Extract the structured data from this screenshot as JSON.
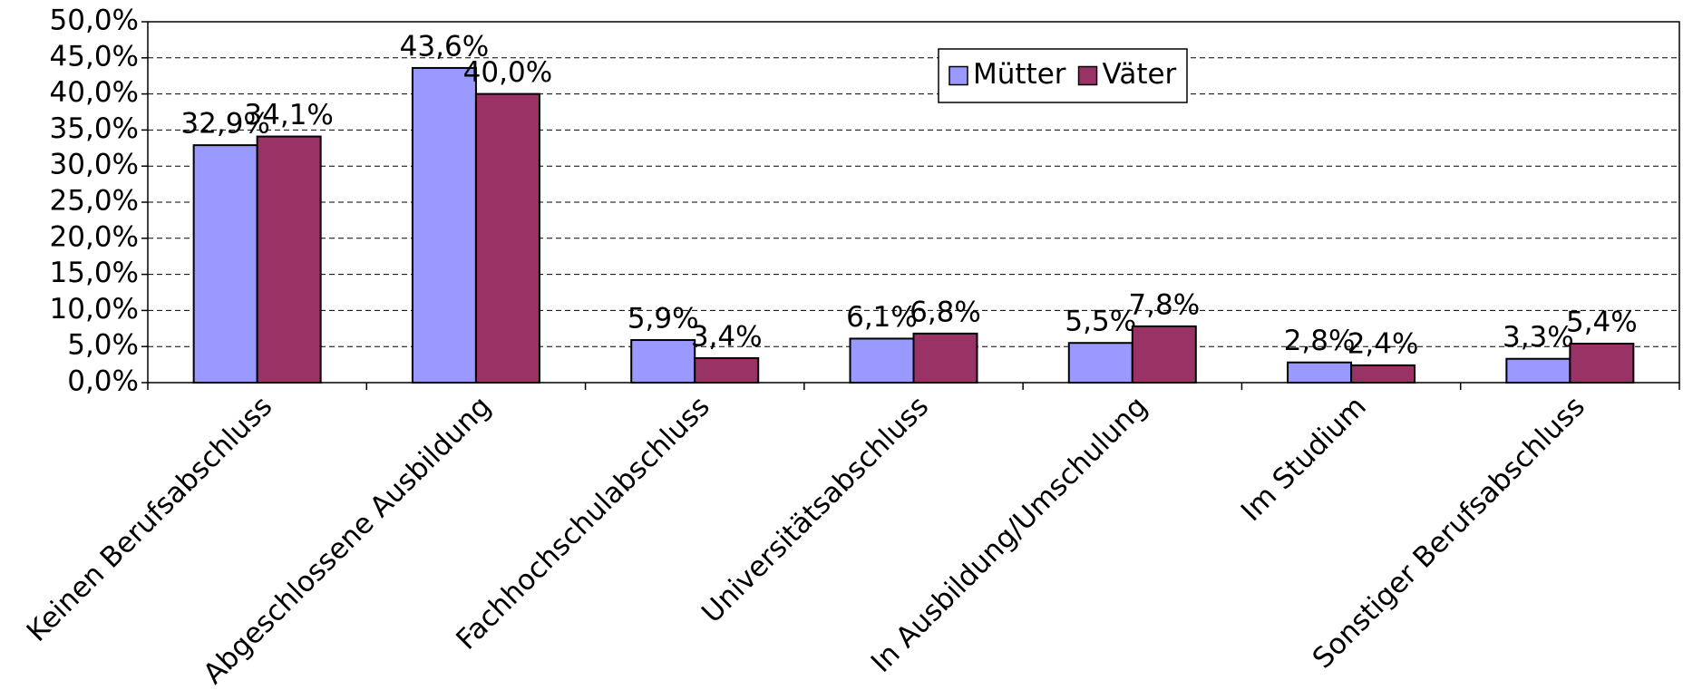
{
  "chart_data": {
    "type": "bar",
    "categories": [
      "Keinen Berufsabschluss",
      "Abgeschlossene Ausbildung",
      "Fachhochschulabschluss",
      "Universitätsabschluss",
      "In Ausbildung/Umschulung",
      "Im Studium",
      "Sonstiger Berufsabschluss"
    ],
    "series": [
      {
        "name": "Mütter",
        "color": "#9999ff",
        "values": [
          32.9,
          43.6,
          5.9,
          6.1,
          5.5,
          2.8,
          3.3
        ],
        "value_labels": [
          "32,9%",
          "43,6%",
          "5,9%",
          "6,1%",
          "5,5%",
          "2,8%",
          "3,3%"
        ]
      },
      {
        "name": "Väter",
        "color": "#993366",
        "values": [
          34.1,
          40.0,
          3.4,
          6.8,
          7.8,
          2.4,
          5.4
        ],
        "value_labels": [
          "34,1%",
          "40,0%",
          "3,4%",
          "6,8%",
          "7,8%",
          "2,4%",
          "5,4%"
        ]
      }
    ],
    "ylim": [
      0,
      50
    ],
    "yticks": [
      {
        "value": 0,
        "label": "0,0%"
      },
      {
        "value": 5,
        "label": "5,0%"
      },
      {
        "value": 10,
        "label": "10,0%"
      },
      {
        "value": 15,
        "label": "15,0%"
      },
      {
        "value": 20,
        "label": "20,0%"
      },
      {
        "value": 25,
        "label": "25,0%"
      },
      {
        "value": 30,
        "label": "30,0%"
      },
      {
        "value": 35,
        "label": "35,0%"
      },
      {
        "value": 40,
        "label": "40,0%"
      },
      {
        "value": 45,
        "label": "45,0%"
      },
      {
        "value": 50,
        "label": "50,0%"
      }
    ],
    "grid": true,
    "legend": "upper center"
  }
}
